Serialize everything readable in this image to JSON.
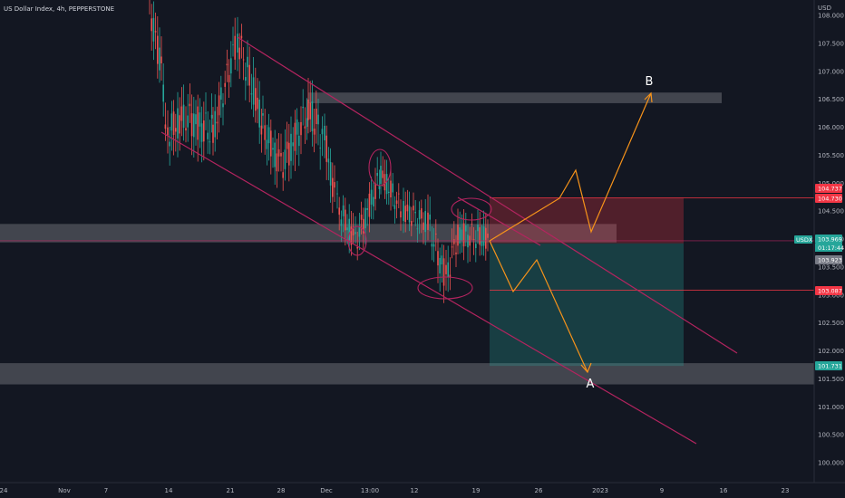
{
  "chart_data": {
    "type": "candlestick",
    "title": "US Dollar Index, 4h, PEPPERSTONE",
    "currency": "USD",
    "symbol": "USDX",
    "countdown": "01:17:44",
    "ylim": [
      99.95,
      108.15
    ],
    "y_ticks": [
      "108.000",
      "107.500",
      "107.000",
      "106.500",
      "106.000",
      "105.500",
      "105.000",
      "104.500",
      "104.000",
      "103.500",
      "103.000",
      "102.500",
      "102.000",
      "101.500",
      "101.000",
      "100.500",
      "100.000"
    ],
    "x_ticks": [
      "24",
      "Nov",
      "7",
      "14",
      "21",
      "28",
      "Dec",
      "13:00",
      "12",
      "19",
      "26",
      "2023",
      "9",
      "16",
      "23"
    ],
    "price_tags": [
      {
        "label": "104.737",
        "value": 104.737,
        "color": "#f23645"
      },
      {
        "label": "104.730",
        "value": 104.73,
        "color": "#f23645"
      },
      {
        "label": "103.969",
        "value": 103.969,
        "color": "#26a69a"
      },
      {
        "label": "103.923",
        "value": 103.923,
        "color": "#787b86"
      },
      {
        "label": "103.087",
        "value": 103.087,
        "color": "#f23645"
      },
      {
        "label": "101.731",
        "value": 101.731,
        "color": "#26a69a"
      }
    ],
    "zones": [
      {
        "y_top": 106.62,
        "y_bottom": 106.43
      },
      {
        "y_top": 104.27,
        "y_bottom": 103.94
      },
      {
        "y_top": 101.78,
        "y_bottom": 101.4
      }
    ],
    "position": {
      "entry": 103.923,
      "stop": 104.737,
      "target": 101.731,
      "risk_color": "#f23645",
      "reward_color": "#26a69a"
    },
    "channel_color": "#b3245f",
    "projection_color": "#f7931a",
    "annotations": [
      "A",
      "B"
    ],
    "colors": {
      "background": "#131722",
      "up": "#26a69a",
      "down": "#ef5350",
      "axis_text": "#b2b5be"
    }
  }
}
